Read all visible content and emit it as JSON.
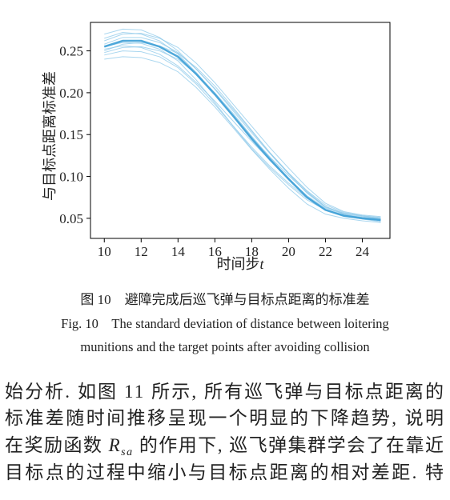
{
  "chart_data": {
    "type": "line",
    "ylabel": "与目标点距离标准差",
    "xlabel": "时间步",
    "xlabel_var": "t",
    "x": [
      10,
      11,
      12,
      13,
      14,
      15,
      16,
      17,
      18,
      19,
      20,
      21,
      22,
      23,
      24,
      25
    ],
    "xlim": [
      9.25,
      25.5
    ],
    "xticks": [
      10,
      12,
      14,
      16,
      18,
      20,
      22,
      24
    ],
    "ylim": [
      0.026,
      0.284
    ],
    "yticks": [
      0.05,
      {
        "value": 0.1,
        "label": "0.10"
      },
      0.15,
      {
        "value": 0.2,
        "label": "0.20"
      },
      0.25
    ],
    "grid": false,
    "series": [
      {
        "color": "#8cc8ea",
        "values": [
          0.27,
          0.276,
          0.275,
          0.266,
          0.25,
          0.228,
          0.204,
          0.178,
          0.152,
          0.127,
          0.103,
          0.08,
          0.063,
          0.056,
          0.052,
          0.05
        ]
      },
      {
        "color": "#8cc8ea",
        "values": [
          0.248,
          0.254,
          0.255,
          0.25,
          0.24,
          0.222,
          0.2,
          0.175,
          0.148,
          0.122,
          0.098,
          0.076,
          0.06,
          0.054,
          0.051,
          0.049
        ]
      },
      {
        "color": "#8cc8ea",
        "values": [
          0.24,
          0.243,
          0.242,
          0.236,
          0.225,
          0.206,
          0.183,
          0.158,
          0.132,
          0.108,
          0.086,
          0.067,
          0.055,
          0.05,
          0.047,
          0.045
        ]
      },
      {
        "color": "#8cc8ea",
        "values": [
          0.262,
          0.27,
          0.271,
          0.265,
          0.254,
          0.235,
          0.212,
          0.186,
          0.16,
          0.134,
          0.11,
          0.087,
          0.068,
          0.058,
          0.054,
          0.052
        ]
      },
      {
        "color": "#8cc8ea",
        "values": [
          0.255,
          0.26,
          0.259,
          0.252,
          0.238,
          0.215,
          0.188,
          0.16,
          0.133,
          0.11,
          0.09,
          0.072,
          0.06,
          0.054,
          0.051,
          0.05
        ]
      },
      {
        "color": "#8cc8ea",
        "values": [
          0.265,
          0.272,
          0.27,
          0.262,
          0.246,
          0.224,
          0.199,
          0.173,
          0.147,
          0.123,
          0.101,
          0.081,
          0.064,
          0.056,
          0.053,
          0.051
        ]
      },
      {
        "color": "#8cc8ea",
        "values": [
          0.25,
          0.258,
          0.26,
          0.256,
          0.247,
          0.23,
          0.208,
          0.182,
          0.155,
          0.128,
          0.104,
          0.082,
          0.064,
          0.055,
          0.05,
          0.047
        ]
      },
      {
        "color": "#8cc8ea",
        "values": [
          0.245,
          0.25,
          0.249,
          0.243,
          0.23,
          0.21,
          0.186,
          0.16,
          0.135,
          0.112,
          0.092,
          0.074,
          0.06,
          0.053,
          0.049,
          0.046
        ]
      },
      {
        "color": "#8cc8ea",
        "values": [
          0.258,
          0.266,
          0.266,
          0.26,
          0.248,
          0.228,
          0.205,
          0.18,
          0.154,
          0.128,
          0.104,
          0.083,
          0.066,
          0.057,
          0.053,
          0.05
        ]
      },
      {
        "color": "#8cc8ea",
        "values": [
          0.252,
          0.256,
          0.254,
          0.246,
          0.232,
          0.212,
          0.19,
          0.166,
          0.142,
          0.119,
          0.097,
          0.077,
          0.062,
          0.055,
          0.051,
          0.048
        ]
      },
      {
        "color": "#3c9fd6",
        "linewidth": 2.5,
        "values": [
          0.255,
          0.262,
          0.262,
          0.255,
          0.243,
          0.222,
          0.198,
          0.172,
          0.145,
          0.12,
          0.097,
          0.075,
          0.06,
          0.053,
          0.05,
          0.048
        ]
      }
    ]
  },
  "caption": {
    "zh": "图 10　避障完成后巡飞弹与目标点距离的标准差",
    "en": [
      "Fig. 10　The standard deviation of distance between loitering",
      "munitions and the target points after avoiding collision"
    ]
  },
  "body": {
    "line1": "始分析. 如图 11 所示, 所有巡飞弹与目标点距离的",
    "line2": "标准差随时间推移呈现一个明显的下降趋势, 说明",
    "line3": {
      "before": "在奖励函数 ",
      "symbol": "R",
      "subscript": "sa",
      "after": " 的作用下, 巡飞弹集群学会了在靠近"
    },
    "line4": "目标点的过程中缩小与目标点距离的相对差距. 特"
  }
}
